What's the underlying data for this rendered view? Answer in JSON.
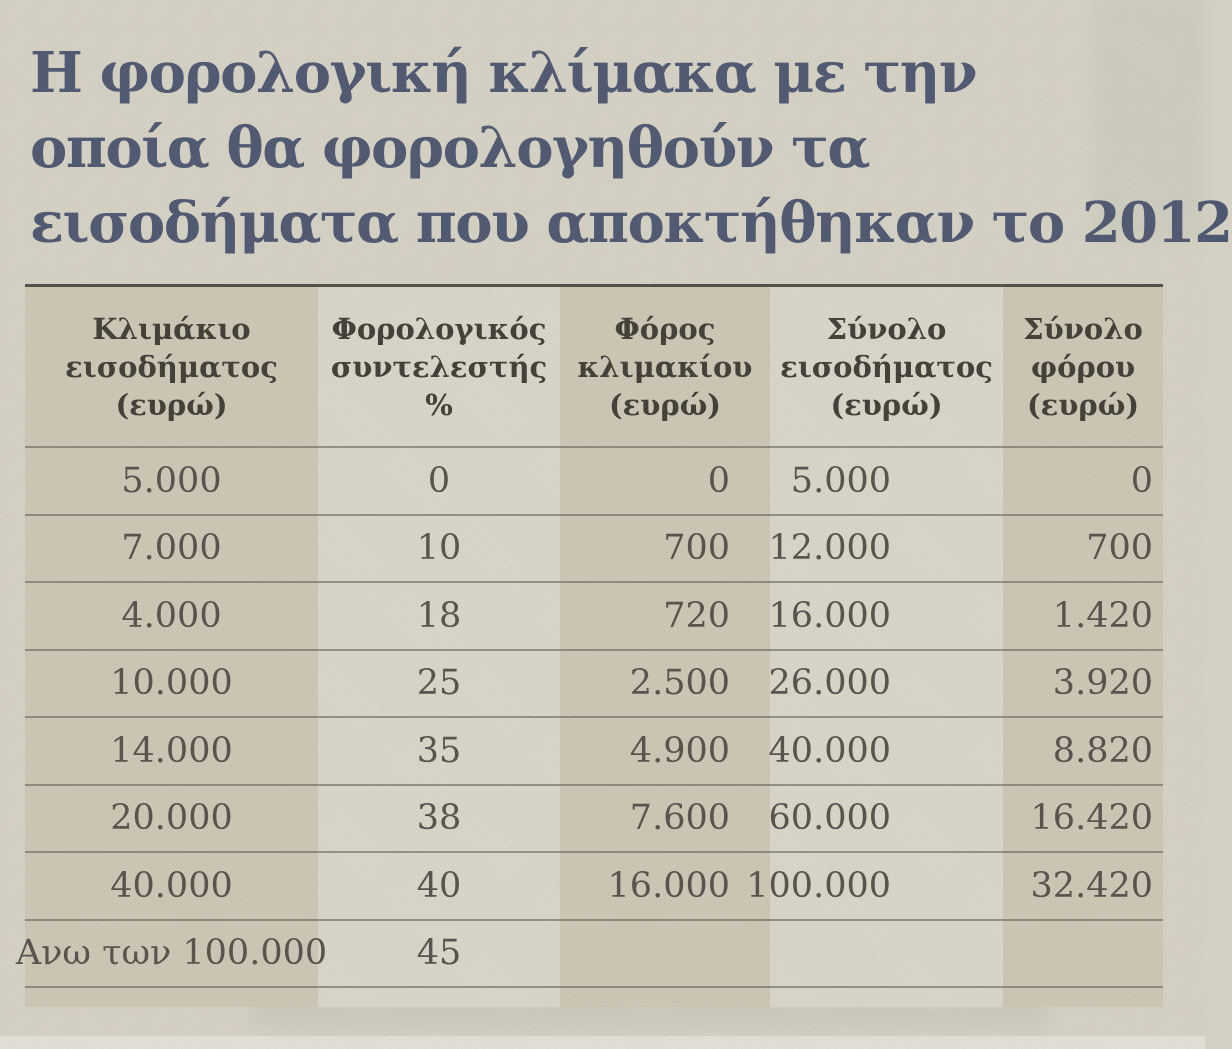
{
  "headline": {
    "line1": "Η φορολογική κλίμακα με την",
    "line2": "οποία θα φορολογηθούν τα",
    "line3": "εισοδήματα που αποκτήθηκαν το 2012"
  },
  "colors": {
    "newsprint_background": "#d4d0c3",
    "headline_text": "#4e5770",
    "column_band_dark": "#cbc5b4",
    "column_band_light": "#d8d4c7",
    "table_text": "#55514a",
    "header_text": "#403d35",
    "rule_line": "#6c6860"
  },
  "table": {
    "headers": [
      "Κλιμάκιο\nεισοδήματος\n(ευρώ)",
      "Φορολογικός\nσυντελεστής\n%",
      "Φόρος\nκλιμακίου\n(ευρώ)",
      "Σύνολο\nεισοδήματος\n(ευρώ)",
      "Σύνολο\nφόρου\n(ευρώ)"
    ],
    "rows": [
      [
        "5.000",
        "0",
        "0",
        "5.000",
        "0"
      ],
      [
        "7.000",
        "10",
        "700",
        "12.000",
        "700"
      ],
      [
        "4.000",
        "18",
        "720",
        "16.000",
        "1.420"
      ],
      [
        "10.000",
        "25",
        "2.500",
        "26.000",
        "3.920"
      ],
      [
        "14.000",
        "35",
        "4.900",
        "40.000",
        "8.820"
      ],
      [
        "20.000",
        "38",
        "7.600",
        "60.000",
        "16.420"
      ],
      [
        "40.000",
        "40",
        "16.000",
        "100.000",
        "32.420"
      ],
      [
        "Ανω των 100.000",
        "45",
        "",
        "",
        ""
      ]
    ]
  }
}
